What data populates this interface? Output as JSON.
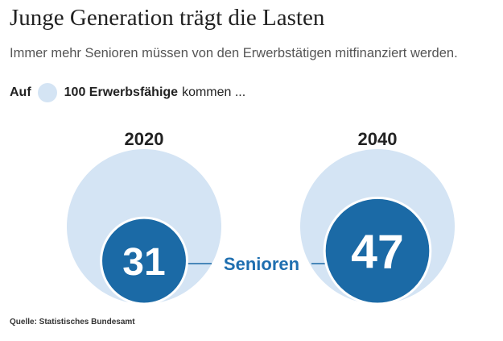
{
  "header": {
    "title": "Junge Generation trägt die Lasten",
    "subtitle": "Immer mehr Senioren müssen von den Erwerbstätigen mitfinanziert werden."
  },
  "legend": {
    "prefix": "Auf",
    "label": "100 Erwerbsfähige",
    "suffix": "kommen ..."
  },
  "chart_data": {
    "type": "bubble",
    "base_value": 100,
    "series_label": "Senioren",
    "groups": [
      {
        "year": "2020",
        "base": 100,
        "seniors": 31,
        "label": "31"
      },
      {
        "year": "2040",
        "base": 100,
        "seniors": 47,
        "label": "47"
      }
    ]
  },
  "source": "Quelle: Statistisches Bundesamt",
  "colors": {
    "base_circle": "#d4e4f4",
    "senior_circle": "#1b6aa6",
    "connector_label": "#1f6fb0",
    "text_dark": "#222222",
    "text_gray": "#555555"
  }
}
